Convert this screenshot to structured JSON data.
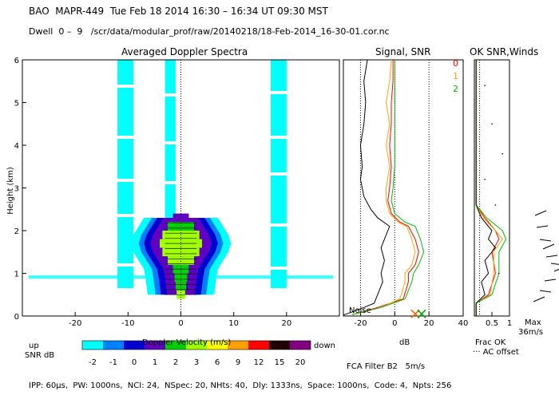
{
  "header": {
    "line1": "BAO  MAPR-449  Tue Feb 18 2014 16:30 – 16:34 UT 09:30 MST",
    "line2": "Dwell  0 –  9   /scr/data/modular_prof/raw/20140218/18-Feb-2014_16-30-01.cor.nc"
  },
  "footer": {
    "params": "IPP: 60μs,  PW: 1000ns,  NCI: 24,  NSpec: 20, NHts: 40,  Dly: 1333ns,  Space: 1000ns,  Code: 4,  Npts: 256",
    "fca": "FCA Filter B2   5m/s"
  },
  "colorbar": {
    "up_label": "up",
    "down_label": "down",
    "title": "SNR dB",
    "levels": [
      "-2",
      "-1",
      "0",
      "1",
      "2",
      "3",
      "6",
      "9",
      "12",
      "15",
      "20"
    ],
    "colors": [
      "#00ffff",
      "#0080ff",
      "#0000d0",
      "#6000c0",
      "#00d000",
      "#a0ff00",
      "#ffff00",
      "#ffa000",
      "#ff0000",
      "#200000",
      "#800080"
    ]
  },
  "chart_data": [
    {
      "type": "heatmap",
      "title": "Averaged Doppler Spectra",
      "xlabel": "Doppler Velocity (m/s)",
      "ylabel": "Height (km)",
      "xlim": [
        -30,
        30
      ],
      "ylim": [
        0,
        6
      ],
      "xticks": [
        -20,
        -10,
        0,
        10,
        20
      ],
      "yticks": [
        0,
        1,
        2,
        3,
        4,
        5,
        6
      ],
      "noise_bands_m_s": [
        [
          -12,
          -9
        ],
        [
          -3,
          -1
        ],
        [
          17,
          20
        ]
      ],
      "core_profile": [
        {
          "h": 0.5,
          "w": 0.8,
          "level": "3"
        },
        {
          "h": 0.7,
          "w": 1.0,
          "level": "2"
        },
        {
          "h": 0.9,
          "w": 1.2,
          "level": "2"
        },
        {
          "h": 1.1,
          "w": 1.5,
          "level": "2"
        },
        {
          "h": 1.3,
          "w": 2.5,
          "level": "3"
        },
        {
          "h": 1.5,
          "w": 3.5,
          "level": "3"
        },
        {
          "h": 1.7,
          "w": 4.0,
          "level": "3"
        },
        {
          "h": 1.9,
          "w": 3.5,
          "level": "3"
        },
        {
          "h": 2.1,
          "w": 2.5,
          "level": "2"
        },
        {
          "h": 2.3,
          "w": 1.5,
          "level": "1"
        }
      ]
    },
    {
      "type": "line",
      "title": "Signal, SNR",
      "xlabel": "dB",
      "xlim": [
        -30,
        40
      ],
      "ylim": [
        0,
        6
      ],
      "xticks": [
        -20,
        0,
        20,
        40
      ],
      "annotation": "Noise",
      "legend": [
        "0",
        "1",
        "2"
      ],
      "series": [
        {
          "name": "signal",
          "color": "#000000",
          "points": [
            [
              -30,
              0.02
            ],
            [
              -18,
              0.2
            ],
            [
              -12,
              0.3
            ],
            [
              -10,
              0.5
            ],
            [
              -7,
              0.8
            ],
            [
              -8,
              1.0
            ],
            [
              -6,
              1.3
            ],
            [
              -8,
              1.6
            ],
            [
              -6,
              1.8
            ],
            [
              -4,
              2.0
            ],
            [
              -3,
              2.1
            ],
            [
              -10,
              2.3
            ],
            [
              -14,
              2.5
            ],
            [
              -18,
              2.8
            ],
            [
              -20,
              3.2
            ],
            [
              -19,
              3.5
            ],
            [
              -20,
              4.0
            ],
            [
              -18,
              4.5
            ],
            [
              -17,
              5.0
            ],
            [
              -18,
              5.5
            ],
            [
              -16,
              6.0
            ]
          ]
        },
        {
          "name": "0",
          "color": "#ff0000",
          "points": [
            [
              -25,
              0.03
            ],
            [
              -10,
              0.2
            ],
            [
              5,
              0.4
            ],
            [
              8,
              0.8
            ],
            [
              8,
              1.0
            ],
            [
              12,
              1.2
            ],
            [
              14,
              1.5
            ],
            [
              12,
              1.8
            ],
            [
              8,
              2.1
            ],
            [
              3,
              2.2
            ],
            [
              -2,
              2.4
            ],
            [
              -4,
              2.7
            ],
            [
              -3,
              3.0
            ],
            [
              -2,
              3.5
            ],
            [
              -3,
              4.0
            ],
            [
              -2,
              4.5
            ],
            [
              -2,
              5.0
            ],
            [
              -1,
              5.5
            ],
            [
              -1,
              6.0
            ]
          ]
        },
        {
          "name": "1",
          "color": "#ffa500",
          "points": [
            [
              -25,
              0.03
            ],
            [
              -8,
              0.2
            ],
            [
              3,
              0.4
            ],
            [
              6,
              0.8
            ],
            [
              6,
              1.0
            ],
            [
              10,
              1.2
            ],
            [
              12,
              1.5
            ],
            [
              10,
              1.8
            ],
            [
              7,
              2.1
            ],
            [
              2,
              2.2
            ],
            [
              -3,
              2.4
            ],
            [
              -5,
              2.7
            ],
            [
              -5,
              3.0
            ],
            [
              -3,
              3.5
            ],
            [
              -5,
              4.0
            ],
            [
              -3,
              4.5
            ],
            [
              -5,
              5.0
            ],
            [
              -3,
              5.5
            ],
            [
              -2,
              6.0
            ]
          ]
        },
        {
          "name": "2",
          "color": "#00c000",
          "points": [
            [
              -25,
              0.03
            ],
            [
              -8,
              0.2
            ],
            [
              6,
              0.4
            ],
            [
              10,
              0.8
            ],
            [
              11,
              1.0
            ],
            [
              14,
              1.2
            ],
            [
              17,
              1.5
            ],
            [
              15,
              1.8
            ],
            [
              12,
              2.1
            ],
            [
              6,
              2.2
            ],
            [
              0,
              2.4
            ],
            [
              -2,
              2.7
            ],
            [
              -1,
              3.0
            ],
            [
              0,
              3.5
            ],
            [
              0,
              4.0
            ],
            [
              0,
              4.5
            ],
            [
              0,
              5.0
            ],
            [
              0,
              5.5
            ],
            [
              0,
              6.0
            ]
          ]
        }
      ]
    },
    {
      "type": "line",
      "title": "OK SNR,Winds",
      "xlabel": "Frac OK",
      "xlabel2": "··· AC offset",
      "xlim": [
        0,
        1
      ],
      "ylim": [
        0,
        6
      ],
      "xticks": [
        0.5,
        1
      ],
      "max_label": "Max",
      "max_value": "36m/s",
      "series": [
        {
          "name": "0",
          "color": "#ff0000",
          "points": [
            [
              0.05,
              0.0
            ],
            [
              0.05,
              0.3
            ],
            [
              0.4,
              0.5
            ],
            [
              0.6,
              1.0
            ],
            [
              0.5,
              1.5
            ],
            [
              0.7,
              1.8
            ],
            [
              0.6,
              2.0
            ],
            [
              0.3,
              2.3
            ],
            [
              0.05,
              2.6
            ],
            [
              0.05,
              6.0
            ]
          ]
        },
        {
          "name": "1",
          "color": "#ffa500",
          "points": [
            [
              0.05,
              0.0
            ],
            [
              0.05,
              0.3
            ],
            [
              0.45,
              0.5
            ],
            [
              0.55,
              1.0
            ],
            [
              0.55,
              1.5
            ],
            [
              0.8,
              1.8
            ],
            [
              0.6,
              2.0
            ],
            [
              0.25,
              2.3
            ],
            [
              0.05,
              2.6
            ],
            [
              0.05,
              6.0
            ]
          ]
        },
        {
          "name": "2",
          "color": "#00c000",
          "points": [
            [
              0.05,
              0.0
            ],
            [
              0.05,
              0.3
            ],
            [
              0.5,
              0.5
            ],
            [
              0.7,
              1.0
            ],
            [
              0.7,
              1.5
            ],
            [
              0.9,
              1.8
            ],
            [
              0.8,
              2.0
            ],
            [
              0.35,
              2.3
            ],
            [
              0.05,
              2.6
            ],
            [
              0.05,
              6.0
            ]
          ]
        },
        {
          "name": "frac_ok",
          "color": "#000000",
          "points": [
            [
              0.05,
              0.0
            ],
            [
              0.05,
              0.3
            ],
            [
              0.3,
              0.5
            ],
            [
              0.2,
              0.8
            ],
            [
              0.4,
              1.0
            ],
            [
              0.3,
              1.3
            ],
            [
              0.6,
              1.6
            ],
            [
              0.4,
              1.8
            ],
            [
              0.5,
              2.0
            ],
            [
              0.2,
              2.3
            ],
            [
              0.05,
              2.6
            ],
            [
              0.05,
              6.0
            ]
          ]
        }
      ]
    }
  ]
}
